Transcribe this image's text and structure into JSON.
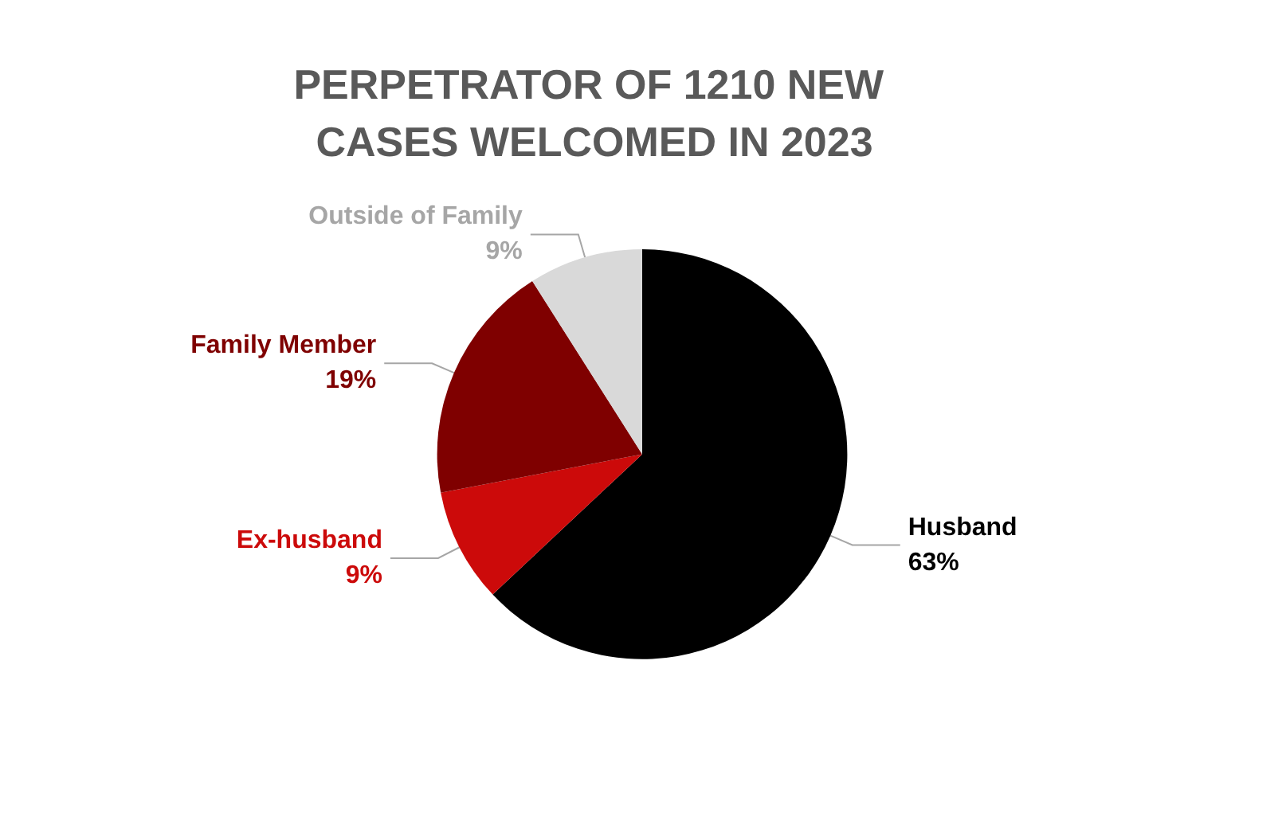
{
  "chart_data": {
    "type": "pie",
    "title": "PERPETRATOR OF 1210 NEW CASES WELCOMED IN 2023",
    "categories": [
      "Husband",
      "Ex-husband",
      "Family Member",
      "Outside of Family"
    ],
    "values": [
      63,
      9,
      19,
      9
    ],
    "colors": [
      "#000000",
      "#cc0a0a",
      "#7f0000",
      "#d9d9d9"
    ],
    "value_labels": [
      "63%",
      "9%",
      "19%",
      "9%"
    ],
    "legend": false
  }
}
